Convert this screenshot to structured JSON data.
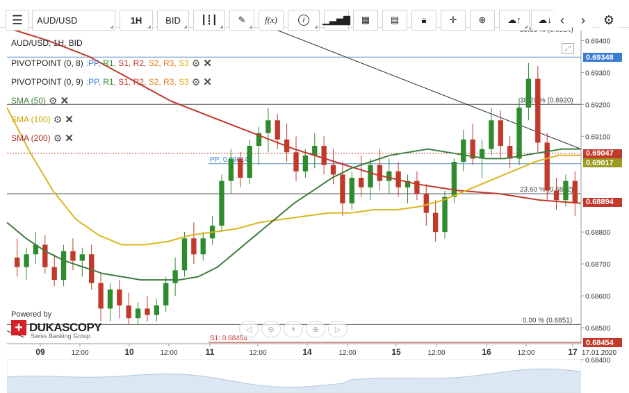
{
  "toolbar": {
    "menu_icon": "hamburger-icon",
    "symbol": "AUD/USD",
    "timeframe": "1H",
    "price_side": "BID",
    "icons": [
      "candles-icon",
      "pencil-icon",
      "function-icon",
      "info-icon",
      "bars-icon",
      "calendar-icon",
      "sheet-icon",
      "lock-icon",
      "crosshair-icon",
      "zoom-icon",
      "upload-icon",
      "download-icon",
      "arrow-left-icon",
      "arrow-right-icon",
      "gear-icon"
    ],
    "function_label": "f(x)",
    "info_label": "i"
  },
  "chart_header": "AUD/USD, 1H, BID",
  "legend": [
    {
      "name": "PIVOTPOINT (0, 8)",
      "levels": [
        ":PP,",
        "R1,",
        "S1,",
        "R2,",
        "S2,",
        "R3,",
        "S3"
      ],
      "color": "#333333"
    },
    {
      "name": "PIVOTPOINT (0, 9)",
      "levels": [
        ":PP,",
        "R1,",
        "S1,",
        "R2,",
        "S2,",
        "R3,",
        "S3"
      ],
      "color": "#333333"
    },
    {
      "name": "SMA (50)",
      "color": "#3f7d3f"
    },
    {
      "name": "SMA (100)",
      "color": "#d8b61e"
    },
    {
      "name": "SMA (200)",
      "color": "#c0392b"
    }
  ],
  "level_colors": [
    "#3a7bd5",
    "#2e8b2e",
    "#c0392b",
    "#c0392b",
    "#e67e22",
    "#e67e22",
    "#d4b000"
  ],
  "powered_by": "Powered by",
  "brand": "DUKASCOPY",
  "brand_sub": "Swiss Banking Group",
  "price_tags": [
    {
      "value": "0.69348",
      "color": "#3a7bd5"
    },
    {
      "value": "0.69047",
      "color": "#c0392b"
    },
    {
      "value": "0.69017",
      "color": "#9a9a20"
    },
    {
      "value": "0.68894",
      "color": "#c0392b"
    },
    {
      "value": "0.68454",
      "color": "#c0392b"
    }
  ],
  "annotations": {
    "fib_top": "38.20 % (0.6920)",
    "fib_mid": "23.60 % (0.6892)",
    "fib_bottom": "0.00 % (0.6851)",
    "pp_label": "PP: 0.69014",
    "s1_label": "S1: 0.68454",
    "top_cut": "50.00 % (0.6934)"
  },
  "chart_data": {
    "type": "candlestick",
    "title": "AUD/USD, 1H, BID",
    "ylim": [
      0.6845,
      0.6944
    ],
    "y_ticks": [
      "0.69400",
      "0.69300",
      "0.69200",
      "0.69100",
      "0.68900",
      "0.68800",
      "0.68700",
      "0.68600",
      "0.68500",
      "0.68400"
    ],
    "x_ticks": [
      "09",
      "12:00",
      "10",
      "12:00",
      "11",
      "12:00",
      "14",
      "12:00",
      "15",
      "12:00",
      "16",
      "12:00",
      "17",
      "17.01.2020"
    ],
    "candles": [
      {
        "t": 0,
        "o": 0.6872,
        "h": 0.6878,
        "l": 0.6866,
        "c": 0.6869
      },
      {
        "t": 1,
        "o": 0.6869,
        "h": 0.6875,
        "l": 0.6865,
        "c": 0.6873
      },
      {
        "t": 2,
        "o": 0.6873,
        "h": 0.688,
        "l": 0.687,
        "c": 0.6876
      },
      {
        "t": 3,
        "o": 0.6876,
        "h": 0.6879,
        "l": 0.6867,
        "c": 0.6869
      },
      {
        "t": 4,
        "o": 0.6869,
        "h": 0.6873,
        "l": 0.6863,
        "c": 0.6865
      },
      {
        "t": 5,
        "o": 0.6865,
        "h": 0.6876,
        "l": 0.6863,
        "c": 0.6874
      },
      {
        "t": 6,
        "o": 0.6874,
        "h": 0.6878,
        "l": 0.6868,
        "c": 0.6871
      },
      {
        "t": 7,
        "o": 0.6871,
        "h": 0.6875,
        "l": 0.6866,
        "c": 0.6873
      },
      {
        "t": 8,
        "o": 0.6873,
        "h": 0.6876,
        "l": 0.6862,
        "c": 0.6864
      },
      {
        "t": 9,
        "o": 0.6864,
        "h": 0.6867,
        "l": 0.6852,
        "c": 0.6856
      },
      {
        "t": 10,
        "o": 0.6856,
        "h": 0.6864,
        "l": 0.6852,
        "c": 0.6862
      },
      {
        "t": 11,
        "o": 0.6862,
        "h": 0.6865,
        "l": 0.6853,
        "c": 0.6857
      },
      {
        "t": 12,
        "o": 0.6857,
        "h": 0.6861,
        "l": 0.6851,
        "c": 0.6853
      },
      {
        "t": 13,
        "o": 0.6853,
        "h": 0.6858,
        "l": 0.6851,
        "c": 0.6856
      },
      {
        "t": 14,
        "o": 0.6856,
        "h": 0.686,
        "l": 0.6852,
        "c": 0.6854
      },
      {
        "t": 15,
        "o": 0.6854,
        "h": 0.6859,
        "l": 0.6852,
        "c": 0.6857
      },
      {
        "t": 16,
        "o": 0.6857,
        "h": 0.6866,
        "l": 0.6855,
        "c": 0.6864
      },
      {
        "t": 17,
        "o": 0.6864,
        "h": 0.6872,
        "l": 0.686,
        "c": 0.6868
      },
      {
        "t": 18,
        "o": 0.6868,
        "h": 0.688,
        "l": 0.6866,
        "c": 0.6878
      },
      {
        "t": 19,
        "o": 0.6878,
        "h": 0.6883,
        "l": 0.687,
        "c": 0.6873
      },
      {
        "t": 20,
        "o": 0.6873,
        "h": 0.688,
        "l": 0.6871,
        "c": 0.6878
      },
      {
        "t": 21,
        "o": 0.6878,
        "h": 0.6885,
        "l": 0.6876,
        "c": 0.6882
      },
      {
        "t": 22,
        "o": 0.6882,
        "h": 0.6898,
        "l": 0.688,
        "c": 0.6896
      },
      {
        "t": 23,
        "o": 0.6896,
        "h": 0.6906,
        "l": 0.6892,
        "c": 0.6903
      },
      {
        "t": 24,
        "o": 0.6903,
        "h": 0.6905,
        "l": 0.6894,
        "c": 0.6897
      },
      {
        "t": 25,
        "o": 0.6897,
        "h": 0.6909,
        "l": 0.6895,
        "c": 0.6907
      },
      {
        "t": 26,
        "o": 0.6907,
        "h": 0.6913,
        "l": 0.6901,
        "c": 0.6911
      },
      {
        "t": 27,
        "o": 0.6911,
        "h": 0.6919,
        "l": 0.6905,
        "c": 0.6915
      },
      {
        "t": 28,
        "o": 0.6915,
        "h": 0.6917,
        "l": 0.6906,
        "c": 0.6909
      },
      {
        "t": 29,
        "o": 0.6909,
        "h": 0.6914,
        "l": 0.6902,
        "c": 0.6905
      },
      {
        "t": 30,
        "o": 0.6905,
        "h": 0.691,
        "l": 0.6896,
        "c": 0.6899
      },
      {
        "t": 31,
        "o": 0.6899,
        "h": 0.6906,
        "l": 0.6897,
        "c": 0.6904
      },
      {
        "t": 32,
        "o": 0.6904,
        "h": 0.6911,
        "l": 0.69,
        "c": 0.6907
      },
      {
        "t": 33,
        "o": 0.6907,
        "h": 0.691,
        "l": 0.6898,
        "c": 0.6901
      },
      {
        "t": 34,
        "o": 0.6901,
        "h": 0.6906,
        "l": 0.6895,
        "c": 0.6898
      },
      {
        "t": 35,
        "o": 0.6898,
        "h": 0.6902,
        "l": 0.6885,
        "c": 0.6889
      },
      {
        "t": 36,
        "o": 0.6889,
        "h": 0.6899,
        "l": 0.6887,
        "c": 0.6897
      },
      {
        "t": 37,
        "o": 0.6897,
        "h": 0.6904,
        "l": 0.6891,
        "c": 0.6894
      },
      {
        "t": 38,
        "o": 0.6894,
        "h": 0.6903,
        "l": 0.689,
        "c": 0.6901
      },
      {
        "t": 39,
        "o": 0.6901,
        "h": 0.6906,
        "l": 0.6893,
        "c": 0.6896
      },
      {
        "t": 40,
        "o": 0.6896,
        "h": 0.6903,
        "l": 0.6892,
        "c": 0.6899
      },
      {
        "t": 41,
        "o": 0.6899,
        "h": 0.6902,
        "l": 0.6891,
        "c": 0.6894
      },
      {
        "t": 42,
        "o": 0.6894,
        "h": 0.6898,
        "l": 0.6889,
        "c": 0.6896
      },
      {
        "t": 43,
        "o": 0.6896,
        "h": 0.6899,
        "l": 0.689,
        "c": 0.6892
      },
      {
        "t": 44,
        "o": 0.6892,
        "h": 0.6895,
        "l": 0.6882,
        "c": 0.6886
      },
      {
        "t": 45,
        "o": 0.6886,
        "h": 0.689,
        "l": 0.6877,
        "c": 0.688
      },
      {
        "t": 46,
        "o": 0.688,
        "h": 0.6893,
        "l": 0.6878,
        "c": 0.6891
      },
      {
        "t": 47,
        "o": 0.6891,
        "h": 0.6903,
        "l": 0.6889,
        "c": 0.6902
      },
      {
        "t": 48,
        "o": 0.6902,
        "h": 0.6912,
        "l": 0.6899,
        "c": 0.6909
      },
      {
        "t": 49,
        "o": 0.6909,
        "h": 0.6914,
        "l": 0.6901,
        "c": 0.6903
      },
      {
        "t": 50,
        "o": 0.6903,
        "h": 0.6909,
        "l": 0.6897,
        "c": 0.6906
      },
      {
        "t": 51,
        "o": 0.6906,
        "h": 0.6919,
        "l": 0.6904,
        "c": 0.6915
      },
      {
        "t": 52,
        "o": 0.6915,
        "h": 0.6918,
        "l": 0.6903,
        "c": 0.6907
      },
      {
        "t": 53,
        "o": 0.6907,
        "h": 0.691,
        "l": 0.69,
        "c": 0.6903
      },
      {
        "t": 54,
        "o": 0.6903,
        "h": 0.6922,
        "l": 0.6901,
        "c": 0.6919
      },
      {
        "t": 55,
        "o": 0.6919,
        "h": 0.6933,
        "l": 0.6915,
        "c": 0.6928
      },
      {
        "t": 56,
        "o": 0.6928,
        "h": 0.6932,
        "l": 0.6905,
        "c": 0.6908
      },
      {
        "t": 57,
        "o": 0.6908,
        "h": 0.6911,
        "l": 0.689,
        "c": 0.6893
      },
      {
        "t": 58,
        "o": 0.6893,
        "h": 0.6897,
        "l": 0.6887,
        "c": 0.689
      },
      {
        "t": 59,
        "o": 0.689,
        "h": 0.6898,
        "l": 0.6888,
        "c": 0.6896
      },
      {
        "t": 60,
        "o": 0.6896,
        "h": 0.6899,
        "l": 0.6885,
        "c": 0.6889
      }
    ],
    "sma50": [
      0.6883,
      0.6878,
      0.6874,
      0.6871,
      0.6869,
      0.6867,
      0.6866,
      0.6865,
      0.6865,
      0.6865,
      0.6866,
      0.6869,
      0.6874,
      0.6879,
      0.6884,
      0.6889,
      0.6893,
      0.6897,
      0.69,
      0.6902,
      0.6904,
      0.6905,
      0.6906,
      0.6905,
      0.6904,
      0.6903,
      0.6903,
      0.6904,
      0.6905,
      0.6906,
      0.6906
    ],
    "sma100": [
      0.6919,
      0.6905,
      0.6893,
      0.6884,
      0.6879,
      0.6876,
      0.6876,
      0.6877,
      0.6879,
      0.688,
      0.6881,
      0.6883,
      0.6884,
      0.6885,
      0.6886,
      0.6886,
      0.6887,
      0.6887,
      0.6888,
      0.689,
      0.6893,
      0.6896,
      0.6899,
      0.6902,
      0.6904,
      0.6904
    ],
    "sma200": [
      0.6944,
      0.694,
      0.6935,
      0.6928,
      0.6921,
      0.6916,
      0.6911,
      0.6906,
      0.6902,
      0.6898,
      0.6895,
      0.6893,
      0.6892,
      0.689,
      0.6889
    ]
  }
}
